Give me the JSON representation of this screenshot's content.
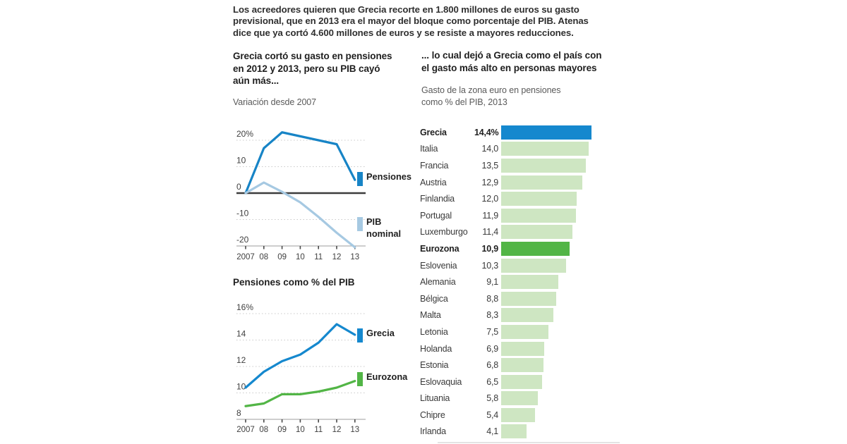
{
  "intro": {
    "text": "Los acreedores quieren que Grecia recorte en 1.800 millones de euros su gasto\nprevisional, que en 2013 era el mayor del bloque como porcentaje del PIB. Atenas\ndice que ya cortó 4.600 millones de euros y se resiste a mayores reducciones."
  },
  "left": {
    "heading": "Grecia cortó su gasto en pensiones\nen 2012 y 2013, pero su PIB cayó\naún más...",
    "subtitle": "Variación desde 2007",
    "section2_title": "Pensiones como % del PIB"
  },
  "right": {
    "heading": "... lo cual dejó a Grecia como el país con\nel gasto más alto en personas mayores",
    "subtitle": "Gasto de la zona euro en pensiones\ncomo % del PIB, 2013"
  },
  "colors": {
    "blue": "#1588ce",
    "light_blue": "#a6c9e2",
    "green": "#52b546",
    "light_green": "#cee6c2",
    "grid": "#c9c9c9",
    "zero_line": "#3c3c3c",
    "axis": "#b0b0b0",
    "tick": "#4a4a4a",
    "text_dark": "#2f2f2f",
    "text_gray": "#5a5a5a"
  },
  "chart_data": [
    {
      "type": "line",
      "title": "Grecia cortó su gasto en pensiones en 2012 y 2013, pero su PIB cayó aún más...",
      "subtitle": "Variación desde 2007",
      "ylabel": "% variación desde 2007",
      "x_labels": [
        "2007",
        "08",
        "09",
        "10",
        "11",
        "12",
        "13"
      ],
      "ylim": [
        -20.5,
        23
      ],
      "grid": true,
      "zero_line": true,
      "legend_position": "right",
      "yticks": [
        {
          "label": "20%",
          "value": 20
        },
        {
          "label": "10",
          "value": 10
        },
        {
          "label": "0",
          "value": 0
        },
        {
          "label": "-10",
          "value": -10
        },
        {
          "label": "-20",
          "value": -20
        }
      ],
      "series": [
        {
          "name": "Pensiones",
          "color": "#1784c6",
          "values": [
            0,
            17,
            23,
            21.5,
            20,
            18.5,
            5
          ]
        },
        {
          "name": "PIB nominal",
          "color": "#a6c9e2",
          "values": [
            0,
            4,
            0.5,
            -3.5,
            -9,
            -15,
            -20.5
          ]
        }
      ]
    },
    {
      "type": "line",
      "title": "Pensiones como % del PIB",
      "x_labels": [
        "2007",
        "08",
        "09",
        "10",
        "11",
        "12",
        "13"
      ],
      "ylim": [
        8,
        16
      ],
      "grid": true,
      "zero_line": false,
      "legend_position": "right",
      "yticks": [
        {
          "label": "16%",
          "value": 16
        },
        {
          "label": "14",
          "value": 14
        },
        {
          "label": "12",
          "value": 12
        },
        {
          "label": "10",
          "value": 10
        },
        {
          "label": "8",
          "value": 8
        }
      ],
      "series": [
        {
          "name": "Grecia",
          "color": "#1588ce",
          "values": [
            10.4,
            11.6,
            12.4,
            12.9,
            13.8,
            15.2,
            14.4
          ]
        },
        {
          "name": "Eurozona",
          "color": "#52b546",
          "values": [
            9.0,
            9.2,
            9.9,
            9.9,
            10.1,
            10.4,
            10.9
          ]
        }
      ]
    },
    {
      "type": "bar",
      "orientation": "horizontal",
      "title": "Gasto de la zona euro en pensiones como % del PIB, 2013",
      "xlim": [
        0,
        14.4
      ],
      "rows": [
        {
          "label": "Grecia",
          "value": 14.4,
          "display": "14,4%",
          "color": "blue",
          "bold": true
        },
        {
          "label": "Italia",
          "value": 14.0,
          "display": "14,0",
          "color": "light_green",
          "bold": false
        },
        {
          "label": "Francia",
          "value": 13.5,
          "display": "13,5",
          "color": "light_green",
          "bold": false
        },
        {
          "label": "Austria",
          "value": 12.9,
          "display": "12,9",
          "color": "light_green",
          "bold": false
        },
        {
          "label": "Finlandia",
          "value": 12.0,
          "display": "12,0",
          "color": "light_green",
          "bold": false
        },
        {
          "label": "Portugal",
          "value": 11.9,
          "display": "11,9",
          "color": "light_green",
          "bold": false
        },
        {
          "label": "Luxemburgo",
          "value": 11.4,
          "display": "11,4",
          "color": "light_green",
          "bold": false
        },
        {
          "label": "Eurozona",
          "value": 10.9,
          "display": "10,9",
          "color": "green",
          "bold": true
        },
        {
          "label": "Eslovenia",
          "value": 10.3,
          "display": "10,3",
          "color": "light_green",
          "bold": false
        },
        {
          "label": "Alemania",
          "value": 9.1,
          "display": "9,1",
          "color": "light_green",
          "bold": false
        },
        {
          "label": "Bélgica",
          "value": 8.8,
          "display": "8,8",
          "color": "light_green",
          "bold": false
        },
        {
          "label": "Malta",
          "value": 8.3,
          "display": "8,3",
          "color": "light_green",
          "bold": false
        },
        {
          "label": "Letonia",
          "value": 7.5,
          "display": "7,5",
          "color": "light_green",
          "bold": false
        },
        {
          "label": "Holanda",
          "value": 6.9,
          "display": "6,9",
          "color": "light_green",
          "bold": false
        },
        {
          "label": "Estonia",
          "value": 6.8,
          "display": "6,8",
          "color": "light_green",
          "bold": false
        },
        {
          "label": "Eslovaquia",
          "value": 6.5,
          "display": "6,5",
          "color": "light_green",
          "bold": false
        },
        {
          "label": "Lituania",
          "value": 5.8,
          "display": "5,8",
          "color": "light_green",
          "bold": false
        },
        {
          "label": "Chipre",
          "value": 5.4,
          "display": "5,4",
          "color": "light_green",
          "bold": false
        },
        {
          "label": "Irlanda",
          "value": 4.1,
          "display": "4,1",
          "color": "light_green",
          "bold": false
        }
      ]
    }
  ]
}
